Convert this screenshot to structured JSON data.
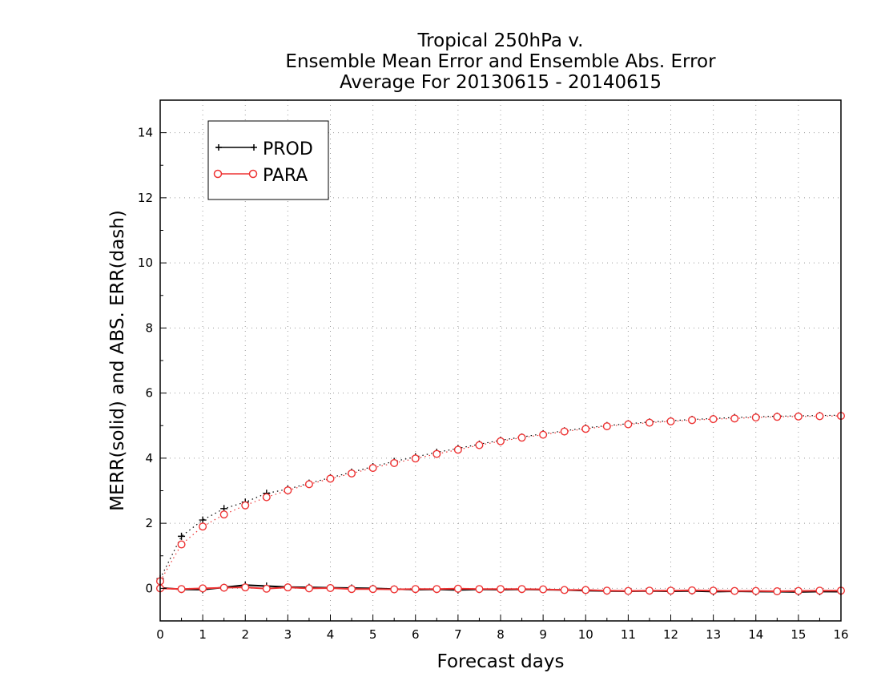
{
  "chart_data": {
    "type": "line",
    "title_lines": [
      "Tropical 250hPa v.",
      "Ensemble Mean Error and Ensemble Abs. Error",
      "Average For 20130615 - 20140615"
    ],
    "xlabel": "Forecast days",
    "ylabel": "MERR(solid) and ABS. ERR(dash)",
    "xlim": [
      0,
      16
    ],
    "ylim": [
      -1,
      15
    ],
    "xticks": [
      "0",
      "1",
      "2",
      "3",
      "4",
      "5",
      "6",
      "7",
      "8",
      "9",
      "10",
      "11",
      "12",
      "13",
      "14",
      "15",
      "16"
    ],
    "yticks": [
      "0",
      "2",
      "4",
      "6",
      "8",
      "10",
      "12",
      "14"
    ],
    "grid": true,
    "legend_position": "top-left",
    "x": [
      0,
      0.5,
      1,
      1.5,
      2,
      2.5,
      3,
      3.5,
      4,
      4.5,
      5,
      5.5,
      6,
      6.5,
      7,
      7.5,
      8,
      8.5,
      9,
      9.5,
      10,
      10.5,
      11,
      11.5,
      12,
      12.5,
      13,
      13.5,
      14,
      14.5,
      15,
      15.5,
      16
    ],
    "series": [
      {
        "name": "PROD",
        "color": "#000000",
        "marker": "plus",
        "merr": [
          0.02,
          -0.03,
          -0.04,
          0.03,
          0.1,
          0.07,
          0.04,
          0.03,
          0.02,
          0.01,
          0.0,
          -0.02,
          -0.04,
          -0.03,
          -0.05,
          -0.03,
          -0.04,
          -0.03,
          -0.04,
          -0.05,
          -0.07,
          -0.08,
          -0.09,
          -0.08,
          -0.09,
          -0.08,
          -0.1,
          -0.09,
          -0.1,
          -0.1,
          -0.11,
          -0.1,
          -0.1
        ],
        "abs_err": [
          0.3,
          1.6,
          2.1,
          2.45,
          2.65,
          2.92,
          3.05,
          3.23,
          3.4,
          3.57,
          3.74,
          3.9,
          4.04,
          4.18,
          4.3,
          4.43,
          4.55,
          4.65,
          4.75,
          4.84,
          4.93,
          5.0,
          5.06,
          5.11,
          5.15,
          5.19,
          5.22,
          5.25,
          5.27,
          5.29,
          5.3,
          5.31,
          5.32
        ]
      },
      {
        "name": "PARA",
        "color": "#ee3333",
        "marker": "circle",
        "merr": [
          0.0,
          -0.02,
          0.0,
          0.02,
          0.03,
          -0.01,
          0.03,
          0.0,
          0.01,
          -0.02,
          -0.02,
          -0.03,
          -0.02,
          -0.02,
          -0.01,
          -0.02,
          -0.02,
          -0.02,
          -0.03,
          -0.05,
          -0.05,
          -0.07,
          -0.08,
          -0.07,
          -0.07,
          -0.06,
          -0.07,
          -0.08,
          -0.08,
          -0.09,
          -0.08,
          -0.07,
          -0.07
        ],
        "abs_err": [
          0.22,
          1.35,
          1.9,
          2.27,
          2.55,
          2.8,
          3.01,
          3.2,
          3.37,
          3.53,
          3.7,
          3.85,
          3.99,
          4.13,
          4.26,
          4.4,
          4.52,
          4.63,
          4.72,
          4.82,
          4.9,
          4.98,
          5.04,
          5.09,
          5.13,
          5.17,
          5.2,
          5.22,
          5.25,
          5.27,
          5.28,
          5.29,
          5.3
        ]
      }
    ]
  }
}
